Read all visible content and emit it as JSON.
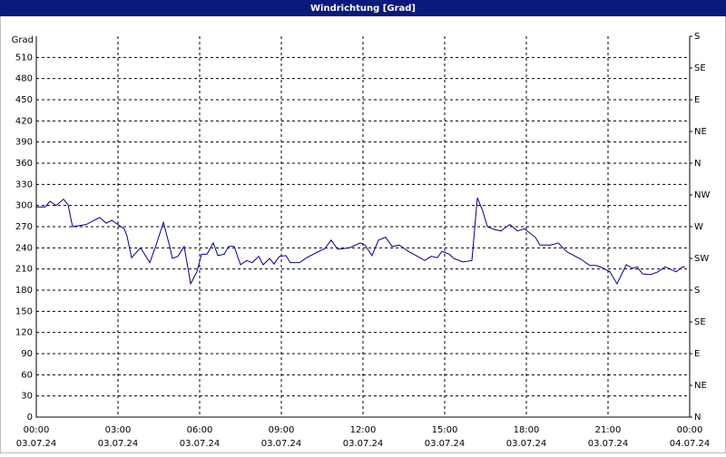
{
  "chart_data": {
    "type": "line",
    "title": "Windrichtung [Grad]",
    "y_label": "Grad",
    "xlim": [
      0,
      24
    ],
    "xticks": [
      {
        "value": 0,
        "label": "00:00"
      },
      {
        "value": 3,
        "label": "03:00"
      },
      {
        "value": 6,
        "label": "06:00"
      },
      {
        "value": 9,
        "label": "09:00"
      },
      {
        "value": 12,
        "label": "12:00"
      },
      {
        "value": 15,
        "label": "15:00"
      },
      {
        "value": 18,
        "label": "18:00"
      },
      {
        "value": 21,
        "label": "21:00"
      },
      {
        "value": 24,
        "label": "00:00"
      }
    ],
    "xtick_dates": [
      "03.07.24",
      "03.07.24",
      "03.07.24",
      "03.07.24",
      "03.07.24",
      "03.07.24",
      "03.07.24",
      "03.07.24",
      "04.07.24"
    ],
    "ylim": [
      0,
      540
    ],
    "yticks": [
      0,
      30,
      60,
      90,
      120,
      150,
      180,
      210,
      240,
      270,
      300,
      330,
      360,
      390,
      420,
      450,
      480,
      510
    ],
    "y2lim": [
      0,
      540
    ],
    "y2ticks": [
      {
        "value": 0,
        "label": "N"
      },
      {
        "value": 45,
        "label": "NE"
      },
      {
        "value": 90,
        "label": "E"
      },
      {
        "value": 135,
        "label": "SE"
      },
      {
        "value": 180,
        "label": "S"
      },
      {
        "value": 225,
        "label": "SW"
      },
      {
        "value": 270,
        "label": "W"
      },
      {
        "value": 315,
        "label": "NW"
      },
      {
        "value": 360,
        "label": "N"
      },
      {
        "value": 405,
        "label": "NE"
      },
      {
        "value": 450,
        "label": "E"
      },
      {
        "value": 495,
        "label": "SE"
      },
      {
        "value": 540,
        "label": "S"
      }
    ],
    "grid": true,
    "series": [
      {
        "color": "#00008b",
        "x": [
          0,
          0.33,
          0.5,
          0.73,
          1.0,
          1.17,
          1.33,
          1.83,
          2.17,
          2.33,
          2.57,
          2.77,
          3.0,
          3.23,
          3.33,
          3.5,
          3.83,
          4.17,
          4.4,
          4.67,
          4.9,
          5.0,
          5.2,
          5.43,
          5.67,
          5.9,
          6.07,
          6.27,
          6.5,
          6.67,
          6.9,
          7.07,
          7.27,
          7.5,
          7.73,
          7.93,
          8.17,
          8.33,
          8.57,
          8.73,
          8.93,
          9.17,
          9.33,
          9.67,
          9.93,
          10.33,
          10.6,
          10.83,
          11.07,
          11.5,
          11.9,
          12.07,
          12.33,
          12.57,
          12.83,
          13.07,
          13.33,
          13.67,
          14.0,
          14.27,
          14.5,
          14.73,
          14.9,
          15.17,
          15.33,
          15.67,
          16.0,
          16.2,
          16.4,
          16.57,
          16.83,
          17.07,
          17.27,
          17.4,
          17.67,
          17.93,
          18.33,
          18.5,
          18.9,
          19.17,
          19.5,
          20.0,
          20.33,
          20.57,
          20.83,
          21.07,
          21.33,
          21.67,
          21.9,
          22.07,
          22.27,
          22.57,
          22.83,
          23.1,
          23.33,
          23.5,
          23.73,
          23.83
        ],
        "values": [
          298,
          298,
          306,
          300,
          309,
          301,
          270,
          273,
          280,
          283,
          275,
          279,
          273,
          267,
          257,
          226,
          240,
          219,
          244,
          276,
          242,
          225,
          228,
          242,
          189,
          206,
          231,
          231,
          247,
          229,
          231,
          242,
          242,
          216,
          222,
          219,
          228,
          216,
          225,
          217,
          228,
          229,
          219,
          219,
          226,
          234,
          239,
          251,
          238,
          240,
          247,
          244,
          229,
          251,
          255,
          242,
          244,
          235,
          228,
          222,
          228,
          226,
          235,
          231,
          225,
          220,
          222,
          311,
          292,
          270,
          266,
          264,
          270,
          273,
          264,
          267,
          255,
          244,
          244,
          247,
          234,
          224,
          215,
          215,
          211,
          206,
          189,
          216,
          211,
          213,
          203,
          202,
          206,
          213,
          209,
          206,
          213,
          213
        ]
      }
    ]
  }
}
